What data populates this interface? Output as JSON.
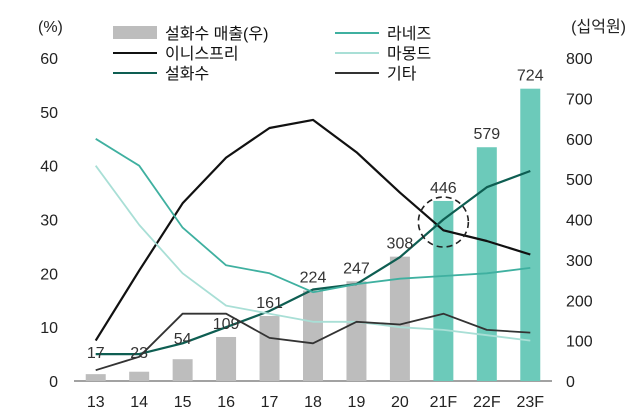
{
  "chart_data": {
    "type": "bar+line",
    "categories": [
      "13",
      "14",
      "15",
      "16",
      "17",
      "18",
      "19",
      "20",
      "21F",
      "22F",
      "23F"
    ],
    "left_axis": {
      "unit": "(%)",
      "ticks": [
        "0",
        "10",
        "20",
        "30",
        "40",
        "50",
        "60"
      ],
      "ylim": [
        0,
        60
      ]
    },
    "right_axis": {
      "unit": "(십억원)",
      "ticks": [
        "0",
        "100",
        "200",
        "300",
        "400",
        "500",
        "600",
        "700",
        "800"
      ],
      "ylim": [
        0,
        800
      ]
    },
    "bars": {
      "name": "설화수 매출(우)",
      "axis": "right",
      "values": [
        17,
        23,
        54,
        109,
        161,
        224,
        247,
        308,
        446,
        579,
        724
      ],
      "labels": [
        "17",
        "23",
        "54",
        "109",
        "161",
        "224",
        "247",
        "308",
        "446",
        "579",
        "724"
      ],
      "colors": {
        "actual": "#bdbdbd",
        "forecast": "#6ccaba"
      },
      "forecast_from_index": 8
    },
    "series": [
      {
        "name": "이니스프리",
        "axis": "left",
        "color": "#111111",
        "values": [
          7.5,
          20.5,
          33,
          41.5,
          47,
          48.5,
          42.5,
          35,
          28,
          26,
          23.5
        ]
      },
      {
        "name": "설화수",
        "axis": "left",
        "color": "#0e5e52",
        "values": [
          5,
          5,
          7,
          10,
          13,
          17,
          18,
          23,
          30,
          36,
          39
        ]
      },
      {
        "name": "라네즈",
        "axis": "left",
        "color": "#3fb0a0",
        "values": [
          45,
          40,
          28.5,
          21.5,
          20,
          16.5,
          18,
          19,
          19.5,
          20,
          21
        ]
      },
      {
        "name": "마몽드",
        "axis": "left",
        "color": "#a9dfd6",
        "values": [
          40,
          29,
          20,
          14,
          12.5,
          11,
          11,
          10,
          9.5,
          8.5,
          7.5
        ]
      },
      {
        "name": "기타",
        "axis": "left",
        "color": "#333333",
        "values": [
          2,
          4.5,
          12.5,
          12.5,
          8,
          7,
          11,
          10.5,
          12.5,
          9.5,
          9
        ]
      }
    ],
    "legend": {
      "placement": "top",
      "items": [
        "설화수 매출(우)",
        "라네즈",
        "이니스프리",
        "마몽드",
        "설화수",
        "기타"
      ]
    },
    "annotation": "dashed circle around 21F",
    "grid": false
  }
}
